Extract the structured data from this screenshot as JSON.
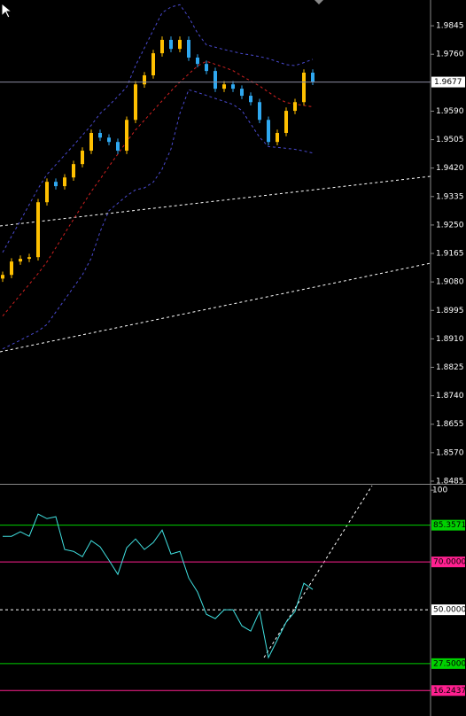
{
  "chart_data": [
    {
      "type": "candlestick",
      "open": [
        1.909,
        1.9101,
        1.9141,
        1.9149,
        1.9154,
        1.9318,
        1.9379,
        1.9366,
        1.9392,
        1.9432,
        1.9472,
        1.9525,
        1.9511,
        1.9498,
        1.9472,
        1.9564,
        1.967,
        1.9697,
        1.9763,
        1.9803,
        1.9776,
        1.9803,
        1.975,
        1.9731,
        1.971,
        1.9657,
        1.967,
        1.9657,
        1.9636,
        1.9617,
        1.9564,
        1.9498,
        1.9525,
        1.9591,
        1.9617,
        1.9705
      ],
      "high": [
        1.9111,
        1.9151,
        1.9159,
        1.9164,
        1.9328,
        1.9389,
        1.9389,
        1.9402,
        1.9442,
        1.9482,
        1.9535,
        1.9535,
        1.9521,
        1.9508,
        1.9574,
        1.968,
        1.9707,
        1.9773,
        1.9813,
        1.9813,
        1.9813,
        1.9813,
        1.976,
        1.9741,
        1.972,
        1.968,
        1.968,
        1.9667,
        1.9646,
        1.9627,
        1.9574,
        1.9535,
        1.9601,
        1.9627,
        1.9715,
        1.9715
      ],
      "low": [
        1.908,
        1.9091,
        1.9131,
        1.9139,
        1.9144,
        1.9308,
        1.9356,
        1.9356,
        1.9382,
        1.9422,
        1.9462,
        1.9501,
        1.9488,
        1.9462,
        1.9462,
        1.9554,
        1.966,
        1.9687,
        1.9753,
        1.9766,
        1.9766,
        1.974,
        1.9721,
        1.97,
        1.9647,
        1.9647,
        1.9647,
        1.9626,
        1.9607,
        1.9554,
        1.9488,
        1.9488,
        1.9515,
        1.9581,
        1.9607,
        1.9668
      ],
      "close": [
        1.9101,
        1.9141,
        1.9149,
        1.9154,
        1.9318,
        1.9379,
        1.9366,
        1.9392,
        1.9432,
        1.9472,
        1.9525,
        1.9511,
        1.9498,
        1.9472,
        1.9564,
        1.967,
        1.9697,
        1.9763,
        1.9803,
        1.9776,
        1.9803,
        1.975,
        1.9731,
        1.971,
        1.9657,
        1.967,
        1.9657,
        1.9636,
        1.9617,
        1.9564,
        1.9498,
        1.9525,
        1.9591,
        1.9617,
        1.9705,
        1.9678
      ],
      "up_color": "#ffc000",
      "down_color": "#2fa8f0",
      "bands": [
        {
          "color": "#4a4ad0",
          "dash": true,
          "values": [
            1.9168,
            1.9216,
            1.9263,
            1.9311,
            1.9359,
            1.9401,
            1.943,
            1.9459,
            1.9488,
            1.9518,
            1.9548,
            1.9583,
            1.9607,
            1.9634,
            1.9662,
            1.9726,
            1.9779,
            1.9832,
            1.9884,
            1.9901,
            1.9908,
            1.9871,
            1.9823,
            1.9788,
            1.9781,
            1.9774,
            1.9768,
            1.9762,
            1.9758,
            1.9753,
            1.9747,
            1.9738,
            1.9729,
            1.9726,
            1.9735,
            1.9745
          ]
        },
        {
          "color": "#d02020",
          "dash": true,
          "values": [
            1.8978,
            1.901,
            1.9042,
            1.9073,
            1.9105,
            1.914,
            1.9182,
            1.9225,
            1.9267,
            1.9309,
            1.935,
            1.9387,
            1.9425,
            1.9462,
            1.9499,
            1.9534,
            1.9563,
            1.9592,
            1.9621,
            1.965,
            1.9677,
            1.9701,
            1.9725,
            1.9739,
            1.973,
            1.9721,
            1.9711,
            1.9695,
            1.968,
            1.9665,
            1.9647,
            1.9629,
            1.9616,
            1.9611,
            1.9607,
            1.9603
          ]
        },
        {
          "color": "#4a4ad0",
          "dash": true,
          "values": [
            1.888,
            1.8893,
            1.8906,
            1.892,
            1.8933,
            1.8953,
            1.899,
            1.9027,
            1.9064,
            1.9101,
            1.9151,
            1.923,
            1.9293,
            1.9315,
            1.9337,
            1.9355,
            1.9361,
            1.9378,
            1.9417,
            1.9477,
            1.9583,
            1.9654,
            1.9646,
            1.9637,
            1.9628,
            1.9619,
            1.961,
            1.9592,
            1.9552,
            1.9512,
            1.9484,
            1.9482,
            1.9479,
            1.9476,
            1.9471,
            1.9465
          ]
        }
      ],
      "current_price": 1.9677,
      "ylim": [
        1.8477,
        1.9922
      ],
      "yticks": [
        1.9845,
        {
          "value": 1.976,
          "label": "1.9760"
        },
        {
          "value": 1.959,
          "label": "1.9590"
        },
        1.9505,
        {
          "value": 1.942,
          "label": "1.9420"
        },
        1.9335,
        {
          "value": 1.925,
          "label": "1.9250"
        },
        1.9165,
        {
          "value": 1.908,
          "label": "1.9080"
        },
        1.8995,
        {
          "value": 1.891,
          "label": "1.8910"
        },
        1.8825,
        {
          "value": 1.874,
          "label": "1.8740"
        },
        1.8655,
        {
          "value": 1.857,
          "label": "1.8570"
        },
        1.8485
      ]
    },
    {
      "type": "line",
      "color": "#40e0e0",
      "values": [
        80.7,
        80.7,
        82.6,
        80.7,
        90.0,
        88.1,
        88.9,
        75.2,
        74.4,
        72.2,
        78.9,
        76.3,
        70.7,
        64.8,
        75.9,
        79.6,
        75.2,
        78.1,
        83.3,
        73.3,
        74.4,
        63.3,
        57.4,
        48.1,
        46.3,
        50.0,
        50.0,
        43.3,
        41.1,
        49.3,
        30.0,
        37.4,
        44.8,
        49.3,
        61.1,
        58.5
      ],
      "ylim": [
        5.6,
        101.9
      ],
      "yticks": [
        100
      ],
      "levels": [
        {
          "value": 85.3571,
          "color": "#00d000",
          "dash": false
        },
        {
          "value": 70,
          "label": "70.0000",
          "color": "#ff2090",
          "dash": false
        },
        {
          "value": 50,
          "label": "50.0000",
          "color": "#ffffff",
          "dash": true
        },
        {
          "value": 27.5,
          "label": "27.5000",
          "color": "#00d000",
          "dash": false
        },
        {
          "value": 16.2437,
          "color": "#ff2090",
          "dash": false
        }
      ]
    }
  ]
}
